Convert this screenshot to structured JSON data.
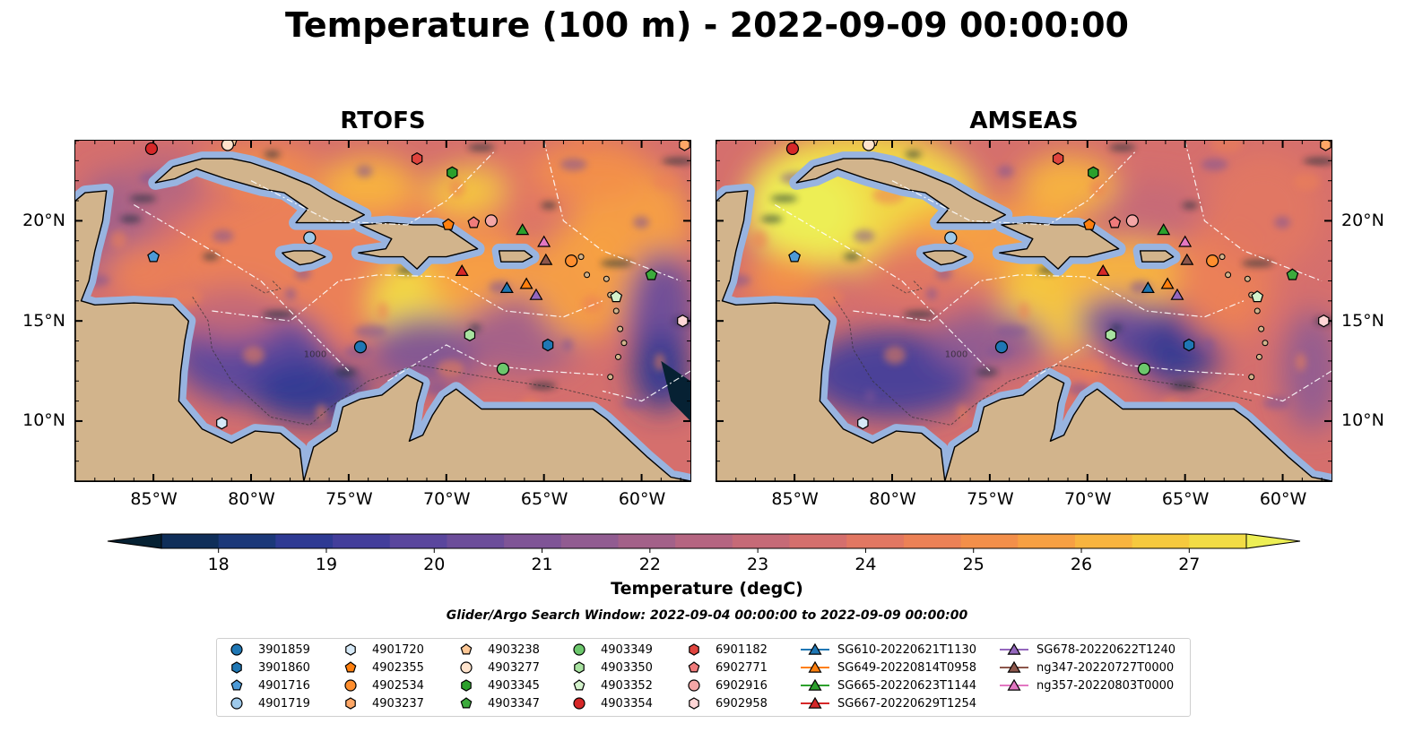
{
  "title": "Temperature (100 m) - 2022-09-09 00:00:00",
  "panels": [
    {
      "name": "RTOFS"
    },
    {
      "name": "AMSEAS"
    }
  ],
  "map": {
    "lon_range": [
      -89,
      -57.5
    ],
    "lat_range": [
      7,
      24
    ],
    "x_ticks": [
      {
        "value": -85,
        "label": "85°W"
      },
      {
        "value": -80,
        "label": "80°W"
      },
      {
        "value": -75,
        "label": "75°W"
      },
      {
        "value": -70,
        "label": "70°W"
      },
      {
        "value": -65,
        "label": "65°W"
      },
      {
        "value": -60,
        "label": "60°W"
      }
    ],
    "y_ticks": [
      {
        "value": 20,
        "label": "20°N"
      },
      {
        "value": 15,
        "label": "15°N"
      },
      {
        "value": 10,
        "label": "10°N"
      }
    ],
    "contour_label": "1000",
    "colors": {
      "land": "#d2b48c",
      "ocean_shallow": "#98b4e0",
      "outside": "#062133"
    }
  },
  "colorbar": {
    "label": "Temperature (degC)",
    "range": [
      18,
      27
    ],
    "ticks": [
      18,
      19,
      20,
      21,
      22,
      23,
      24,
      25,
      26,
      27
    ],
    "colors": [
      "#062133",
      "#0f2e59",
      "#1b3879",
      "#2e3a93",
      "#433e9b",
      "#5a469d",
      "#6c4d9a",
      "#7f5496",
      "#915c91",
      "#a36189",
      "#b56581",
      "#c66a77",
      "#d56f6d",
      "#e27762",
      "#ec8156",
      "#f38f4a",
      "#f7a043",
      "#f8b43f",
      "#f6c93e",
      "#f2dc45",
      "#edef55"
    ]
  },
  "search_window": "Glider/Argo Search Window: 2022-09-04 00:00:00 to 2022-09-09 00:00:00",
  "legend": {
    "items": [
      {
        "label": "3901859",
        "shape": "circle",
        "color": "#1f77b4",
        "lon": -74.4,
        "lat": 13.7
      },
      {
        "label": "3901860",
        "shape": "hexagon",
        "color": "#1f77b4",
        "lon": -64.8,
        "lat": 13.8
      },
      {
        "label": "4901716",
        "shape": "pentagon",
        "color": "#4d9ad6",
        "lon": -85.0,
        "lat": 18.2
      },
      {
        "label": "4901719",
        "shape": "circle",
        "color": "#9ec9ea",
        "lon": -77.0,
        "lat": 19.15
      },
      {
        "label": "4901720",
        "shape": "hexagon",
        "color": "#d6e9f7",
        "lon": -81.5,
        "lat": 9.9
      },
      {
        "label": "4902355",
        "shape": "pentagon",
        "color": "#ff7f0e",
        "lon": -69.9,
        "lat": 19.8
      },
      {
        "label": "4902534",
        "shape": "circle",
        "color": "#ff8e2e",
        "lon": -63.6,
        "lat": 18.0
      },
      {
        "label": "4903237",
        "shape": "hexagon",
        "color": "#ffa766",
        "lon": -57.8,
        "lat": 23.8
      },
      {
        "label": "4903238",
        "shape": "pentagon",
        "color": "#ffc896",
        "lon": -81.0,
        "lat": 24.0
      },
      {
        "label": "4903277",
        "shape": "circle",
        "color": "#ffe3cc",
        "lon": -81.2,
        "lat": 23.8
      },
      {
        "label": "4903345",
        "shape": "hexagon",
        "color": "#2ca02c",
        "lon": -69.7,
        "lat": 22.4
      },
      {
        "label": "4903347",
        "shape": "pentagon",
        "color": "#3caa3c",
        "lon": -59.5,
        "lat": 17.3
      },
      {
        "label": "4903349",
        "shape": "circle",
        "color": "#6cc76c",
        "lon": -67.1,
        "lat": 12.6
      },
      {
        "label": "4903350",
        "shape": "hexagon",
        "color": "#a8e2a0",
        "lon": -68.8,
        "lat": 14.3
      },
      {
        "label": "4903352",
        "shape": "pentagon",
        "color": "#d4f2cc",
        "lon": -61.3,
        "lat": 16.2
      },
      {
        "label": "4903354",
        "shape": "circle",
        "color": "#d62728",
        "lon": -85.1,
        "lat": 23.6
      },
      {
        "label": "6901182",
        "shape": "hexagon",
        "color": "#e0443e",
        "lon": -71.5,
        "lat": 23.1
      },
      {
        "label": "6902771",
        "shape": "pentagon",
        "color": "#f07b7b",
        "lon": -68.6,
        "lat": 19.9
      },
      {
        "label": "6902916",
        "shape": "circle",
        "color": "#f4a6a6",
        "lon": -67.7,
        "lat": 20.0
      },
      {
        "label": "6902958",
        "shape": "hexagon",
        "color": "#ffd6d6",
        "lon": -57.9,
        "lat": 15.0
      },
      {
        "label": "SG610-20220621T1130",
        "shape": "triangle",
        "color": "#1f77b4",
        "lon": -66.9,
        "lat": 16.65
      },
      {
        "label": "SG649-20220814T0958",
        "shape": "triangle",
        "color": "#ff7f0e",
        "lon": -65.9,
        "lat": 16.85
      },
      {
        "label": "SG665-20220623T1144",
        "shape": "triangle",
        "color": "#2ca02c",
        "lon": -66.1,
        "lat": 19.55
      },
      {
        "label": "SG667-20220629T1254",
        "shape": "triangle",
        "color": "#d62728",
        "lon": -69.2,
        "lat": 17.5
      },
      {
        "label": "SG678-20220622T1240",
        "shape": "triangle",
        "color": "#9467bd",
        "lon": -65.4,
        "lat": 16.3
      },
      {
        "label": "ng347-20220727T0000",
        "shape": "triangle",
        "color": "#8c564b",
        "lon": -64.9,
        "lat": 18.05
      },
      {
        "label": "ng357-20220803T0000",
        "shape": "triangle",
        "color": "#e377c2",
        "lon": -65.0,
        "lat": 18.95
      }
    ]
  }
}
